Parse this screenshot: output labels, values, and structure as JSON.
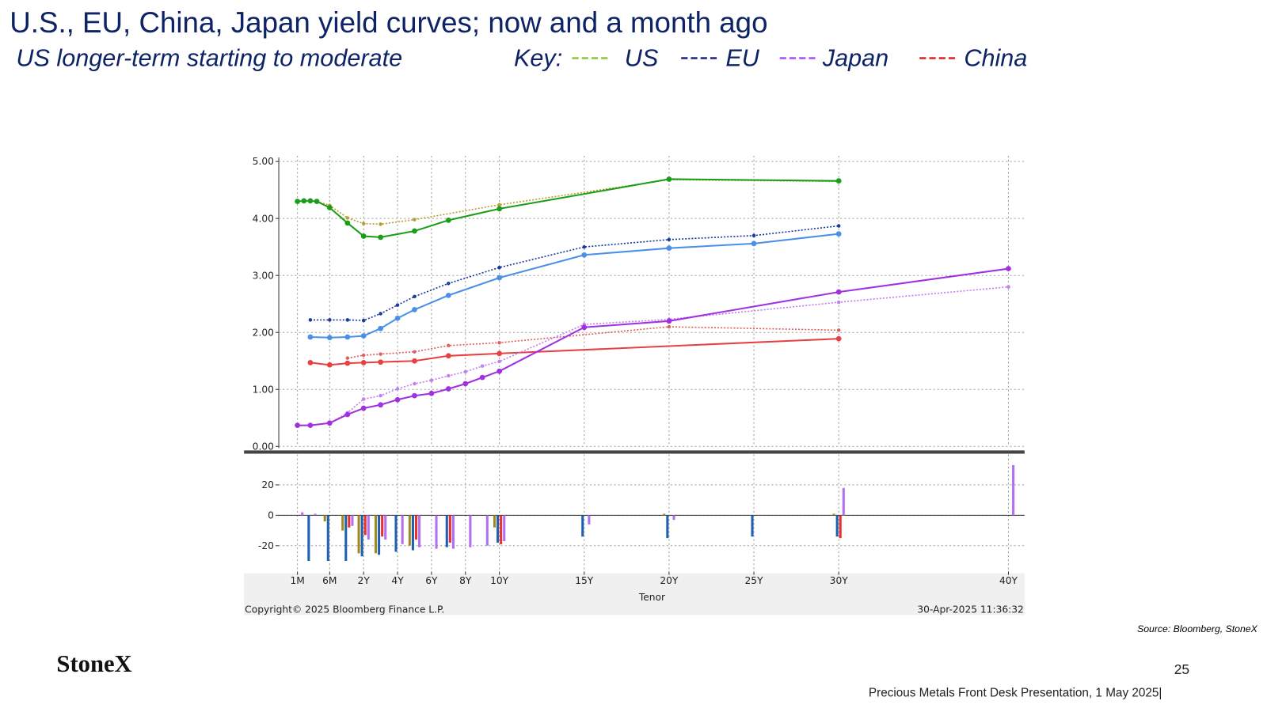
{
  "slide": {
    "title": "U.S., EU, China, Japan yield curves; now and a month ago",
    "subtitle": "US longer-term starting to moderate",
    "key": {
      "label": "Key:",
      "entries": [
        {
          "name": "US",
          "color": "#8cc63f"
        },
        {
          "name": "EU",
          "color": "#1a237e"
        },
        {
          "name": "Japan",
          "color": "#a64dff"
        },
        {
          "name": "China",
          "color": "#e02020"
        }
      ]
    },
    "source": "Source: Bloomberg, StoneX",
    "logo": "StoneX",
    "page_number": "25",
    "footer": "Precious Metals Front Desk Presentation, 1 May 2025|"
  },
  "chart_data": [
    {
      "type": "line",
      "xlabel": "Tenor",
      "copyright": "Copyright© 2025 Bloomberg Finance L.P.",
      "timestamp": "30-Apr-2025 11:36:32",
      "grid": true,
      "xticks": [
        {
          "value": 1,
          "label": "1M"
        },
        {
          "value": 6,
          "label": "6M"
        },
        {
          "value": 24,
          "label": "2Y"
        },
        {
          "value": 48,
          "label": "4Y"
        },
        {
          "value": 72,
          "label": "6Y"
        },
        {
          "value": 96,
          "label": "8Y"
        },
        {
          "value": 120,
          "label": "10Y"
        },
        {
          "value": 180,
          "label": "15Y"
        },
        {
          "value": 240,
          "label": "20Y"
        },
        {
          "value": 300,
          "label": "25Y"
        },
        {
          "value": 360,
          "label": "30Y"
        },
        {
          "value": 480,
          "label": "40Y"
        }
      ],
      "xlim": [
        1,
        480
      ],
      "ylim": [
        0,
        5.1
      ],
      "yticks": [
        {
          "value": 0,
          "label": "0.00"
        },
        {
          "value": 1,
          "label": "1.00"
        },
        {
          "value": 2,
          "label": "2.00"
        },
        {
          "value": 3,
          "label": "3.00"
        },
        {
          "value": 4,
          "label": "4.00"
        },
        {
          "value": 5,
          "label": "5.00"
        }
      ],
      "series": [
        {
          "color": "#b8a030",
          "dashed": true,
          "x": [
            1,
            2,
            3,
            4,
            6,
            12,
            24,
            36,
            60,
            120,
            240,
            360
          ],
          "values": [
            4.3,
            4.31,
            4.31,
            4.3,
            4.23,
            4.01,
            3.91,
            3.9,
            3.98,
            4.24,
            4.68,
            4.65
          ]
        },
        {
          "color": "#1a9e1a",
          "dashed": false,
          "x": [
            1,
            2,
            3,
            4,
            6,
            12,
            24,
            36,
            60,
            84,
            120,
            240,
            360
          ],
          "values": [
            4.3,
            4.31,
            4.31,
            4.3,
            4.19,
            3.92,
            3.69,
            3.67,
            3.78,
            3.97,
            4.17,
            4.69,
            4.66
          ]
        },
        {
          "color": "#1a3a9a",
          "dashed": true,
          "x": [
            3,
            6,
            12,
            24,
            36,
            48,
            60,
            84,
            120,
            180,
            240,
            300,
            360
          ],
          "values": [
            2.22,
            2.22,
            2.22,
            2.21,
            2.33,
            2.48,
            2.63,
            2.86,
            3.14,
            3.5,
            3.63,
            3.7,
            3.87
          ]
        },
        {
          "color": "#4a8fe8",
          "dashed": false,
          "x": [
            3,
            6,
            12,
            24,
            36,
            48,
            60,
            84,
            120,
            180,
            240,
            300,
            360
          ],
          "values": [
            1.92,
            1.91,
            1.92,
            1.94,
            2.07,
            2.25,
            2.4,
            2.65,
            2.96,
            3.36,
            3.48,
            3.56,
            3.73
          ]
        },
        {
          "color": "#e06060",
          "dashed": true,
          "x": [
            12,
            24,
            36,
            60,
            84,
            120,
            240,
            360
          ],
          "values": [
            1.55,
            1.6,
            1.62,
            1.66,
            1.77,
            1.82,
            2.1,
            2.04
          ]
        },
        {
          "color": "#e84040",
          "dashed": false,
          "x": [
            3,
            6,
            12,
            24,
            36,
            60,
            84,
            120,
            360
          ],
          "values": [
            1.47,
            1.43,
            1.46,
            1.47,
            1.48,
            1.5,
            1.59,
            1.63,
            1.89
          ]
        },
        {
          "color": "#c080f0",
          "dashed": true,
          "x": [
            1,
            3,
            6,
            12,
            24,
            36,
            48,
            60,
            72,
            84,
            96,
            108,
            120,
            180,
            240,
            360,
            480
          ],
          "values": [
            0.36,
            0.37,
            0.41,
            0.59,
            0.83,
            0.89,
            1.01,
            1.1,
            1.16,
            1.24,
            1.31,
            1.41,
            1.49,
            2.14,
            2.23,
            2.53,
            2.8
          ]
        },
        {
          "color": "#a030e0",
          "dashed": false,
          "x": [
            1,
            3,
            6,
            12,
            24,
            36,
            48,
            60,
            72,
            84,
            96,
            108,
            120,
            180,
            240,
            360,
            480
          ],
          "values": [
            0.37,
            0.37,
            0.41,
            0.56,
            0.67,
            0.73,
            0.82,
            0.89,
            0.93,
            1.01,
            1.1,
            1.21,
            1.32,
            2.09,
            2.2,
            2.71,
            3.12
          ]
        }
      ]
    },
    {
      "type": "bar",
      "ylim": [
        -37,
        40
      ],
      "yticks": [
        -20,
        0,
        20
      ],
      "grid": true,
      "series": [
        {
          "color": "#a08a20",
          "x": [
            6,
            12,
            24,
            36,
            60,
            120,
            240,
            360
          ],
          "values": [
            -4,
            -10,
            -25,
            -25,
            -20,
            -8,
            1,
            1
          ]
        },
        {
          "color": "#2060b0",
          "x": [
            3,
            6,
            12,
            24,
            36,
            48,
            60,
            84,
            120,
            180,
            240,
            300,
            360
          ],
          "values": [
            -30,
            -30,
            -30,
            -27,
            -26,
            -24,
            -23,
            -21,
            -18,
            -14,
            -15,
            -14,
            -14
          ]
        },
        {
          "color": "#e83030",
          "x": [
            12,
            24,
            36,
            60,
            84,
            120,
            360
          ],
          "values": [
            -8,
            -13,
            -14,
            -16,
            -18,
            -19,
            -15
          ]
        },
        {
          "color": "#b070f0",
          "x": [
            1,
            3,
            12,
            24,
            36,
            48,
            60,
            72,
            84,
            96,
            108,
            120,
            180,
            240,
            360,
            480
          ],
          "values": [
            2,
            1,
            -7,
            -16,
            -16,
            -19,
            -21,
            -22,
            -22,
            -21,
            -20,
            -17,
            -6,
            -3,
            18,
            33
          ]
        }
      ]
    }
  ]
}
